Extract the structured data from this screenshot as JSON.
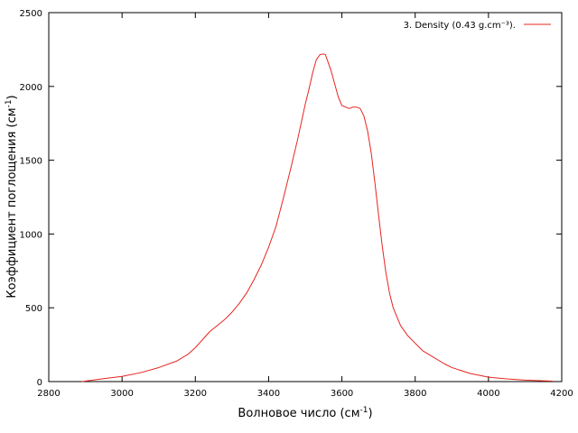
{
  "chart_data": {
    "type": "line",
    "title": "",
    "xlabel": "Волновое число (см",
    "xlabel_sup": "-1",
    "xlabel_end": ")",
    "ylabel": "Коэффициент поглощения (см",
    "ylabel_sup": "-1",
    "ylabel_end": ")",
    "xlim": [
      2800,
      4200
    ],
    "ylim": [
      0,
      2500
    ],
    "xticks": [
      2800,
      3000,
      3200,
      3400,
      3600,
      3800,
      4000,
      4200
    ],
    "yticks": [
      0,
      500,
      1000,
      1500,
      2000,
      2500
    ],
    "grid": false,
    "legend_position": "top-right",
    "series": [
      {
        "name": "3. Density (0.43 g.cm⁻³).",
        "color": "#e8241f",
        "x": [
          2890,
          2920,
          2950,
          3000,
          3050,
          3100,
          3150,
          3180,
          3200,
          3220,
          3240,
          3260,
          3280,
          3300,
          3320,
          3340,
          3360,
          3380,
          3400,
          3420,
          3440,
          3460,
          3480,
          3500,
          3510,
          3520,
          3530,
          3540,
          3550,
          3555,
          3560,
          3570,
          3580,
          3590,
          3600,
          3610,
          3620,
          3630,
          3640,
          3650,
          3660,
          3670,
          3680,
          3690,
          3700,
          3710,
          3720,
          3730,
          3740,
          3760,
          3780,
          3800,
          3820,
          3850,
          3880,
          3900,
          3950,
          4000,
          4050,
          4100,
          4150,
          4175
        ],
        "y": [
          0,
          10,
          20,
          35,
          60,
          95,
          140,
          185,
          230,
          285,
          340,
          380,
          420,
          470,
          530,
          600,
          690,
          790,
          910,
          1050,
          1240,
          1440,
          1650,
          1880,
          1980,
          2090,
          2180,
          2215,
          2220,
          2215,
          2180,
          2110,
          2020,
          1930,
          1870,
          1860,
          1850,
          1860,
          1860,
          1850,
          1800,
          1700,
          1550,
          1350,
          1130,
          920,
          740,
          600,
          500,
          380,
          310,
          260,
          210,
          165,
          120,
          95,
          55,
          30,
          18,
          10,
          5,
          3
        ]
      }
    ]
  }
}
